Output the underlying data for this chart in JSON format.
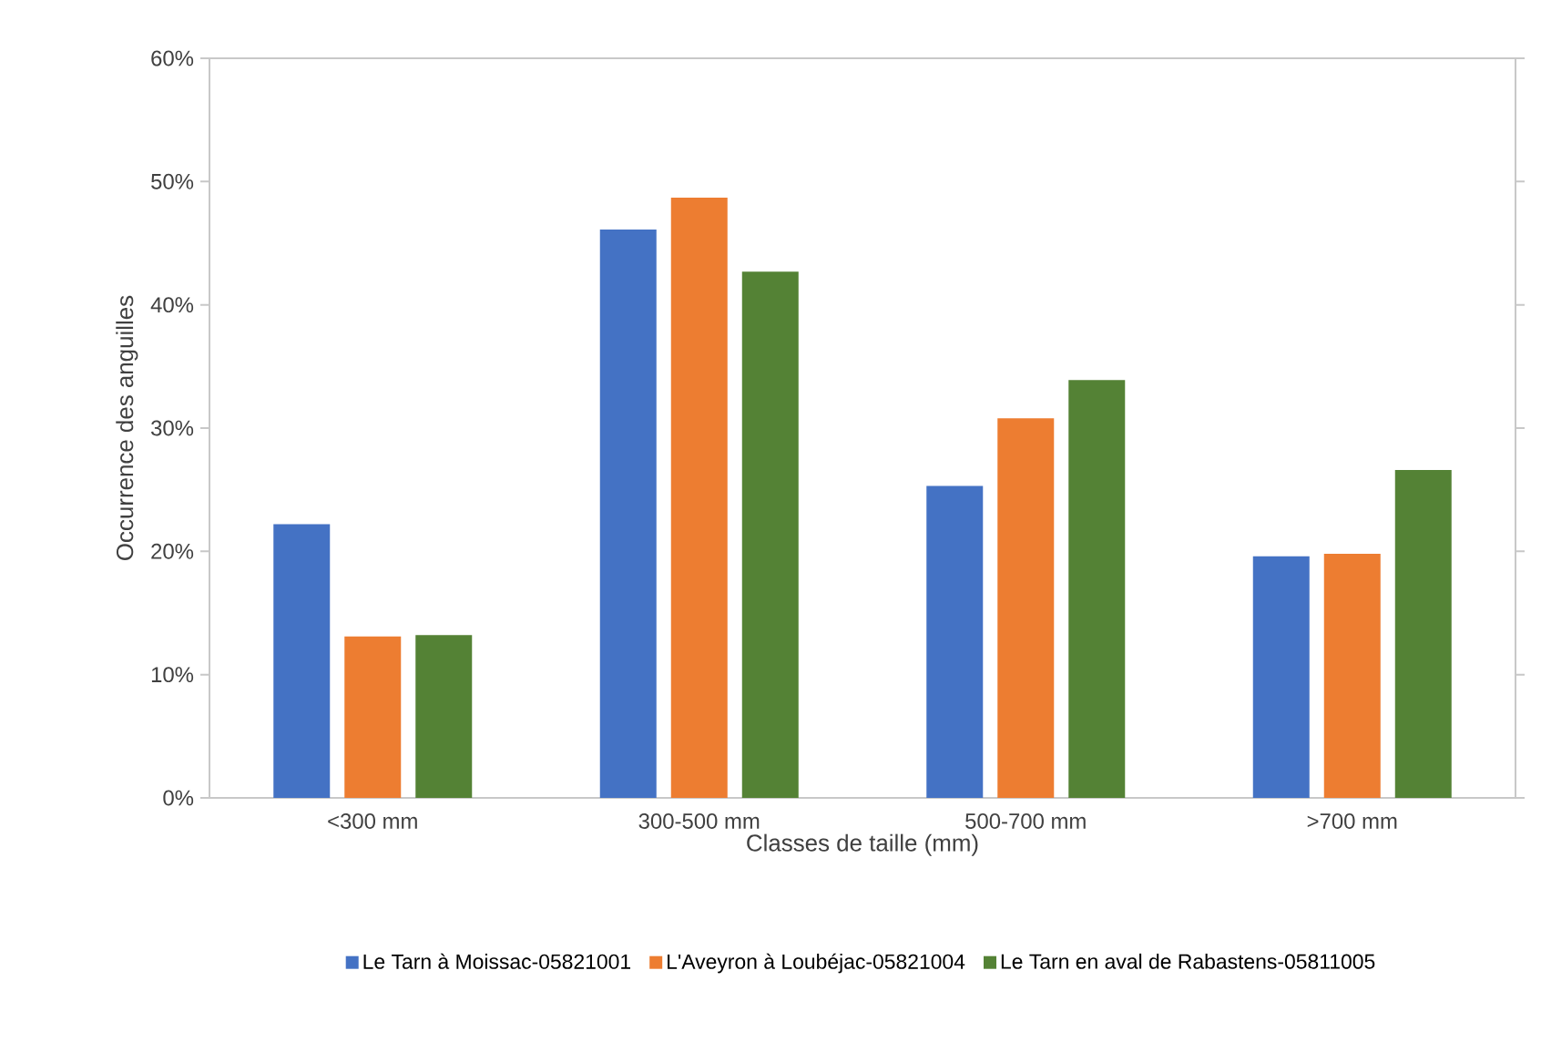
{
  "chart_data": {
    "type": "bar",
    "xlabel": "Classes de taille (mm)",
    "ylabel": "Occurrence des anguilles",
    "categories": [
      "<300 mm",
      "300-500 mm",
      "500-700 mm",
      ">700 mm"
    ],
    "series": [
      {
        "name": "Le Tarn à Moissac-05821001",
        "color": "#4472c4",
        "values": [
          22.2,
          46.1,
          25.3,
          19.6
        ]
      },
      {
        "name": "L'Aveyron à Loubéjac-05821004",
        "color": "#ed7d31",
        "values": [
          13.1,
          48.7,
          30.8,
          19.8
        ]
      },
      {
        "name": "Le Tarn en aval de Rabastens-05811005",
        "color": "#548235",
        "values": [
          13.2,
          42.7,
          33.9,
          26.6
        ]
      }
    ],
    "ylim": [
      0,
      60
    ],
    "yticks": [
      {
        "value": 0,
        "label": "0%"
      },
      {
        "value": 10,
        "label": "10%"
      },
      {
        "value": 20,
        "label": "20%"
      },
      {
        "value": 30,
        "label": "30%"
      },
      {
        "value": 40,
        "label": "40%"
      },
      {
        "value": 50,
        "label": "50%"
      },
      {
        "value": 60,
        "label": "60%"
      }
    ],
    "legend": "bottom"
  }
}
